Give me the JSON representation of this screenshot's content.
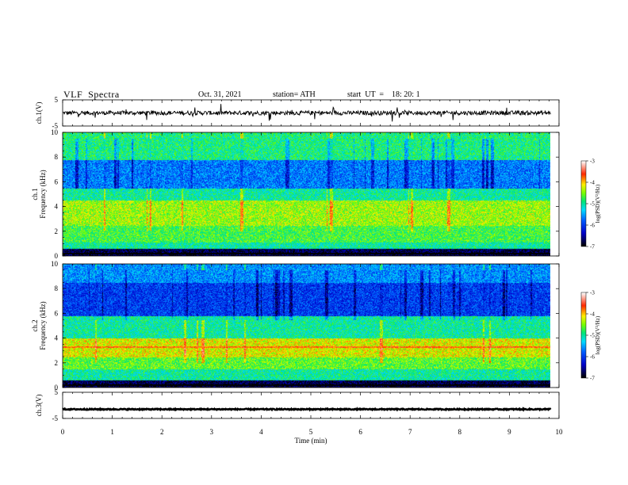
{
  "header": {
    "title": "VLF  Spectra",
    "date": "Oct. 31, 2021",
    "station": "station= ATH",
    "start": "start  UT  =    18: 20: 1"
  },
  "colors": {
    "trace": "#000000",
    "axis": "#000000",
    "spectrogram_scale": [
      "#000000",
      "#0000ff",
      "#00ffff",
      "#00ff00",
      "#ffff00",
      "#ff0000",
      "#ffffff"
    ]
  },
  "chart_data": [
    {
      "type": "line",
      "name": "ch1-voltage",
      "ylabel": "ch.1(V)",
      "ylim": [
        -5,
        5
      ],
      "yticks": [
        "5",
        "-5"
      ],
      "xlim": [
        0,
        10
      ],
      "mean_level": 0,
      "noise_amplitude": 0.8,
      "notes_visible": "trace around 0 V with spikes"
    },
    {
      "type": "heatmap",
      "name": "ch1-spectrogram",
      "ylabel": "ch.1\nFrequency  (kHz)",
      "ylim": [
        0,
        10
      ],
      "yticks": [
        "0",
        "2",
        "4",
        "6",
        "8",
        "10"
      ],
      "xlim": [
        0,
        9.83
      ],
      "value_range": [
        -7,
        -3
      ],
      "colorbar_label": "log(PSD)(V²/Hz)",
      "colorbar_ticks": [
        "-3",
        "-4",
        "-5",
        "-6",
        "-7"
      ],
      "bands_khz": [
        {
          "from": 0.0,
          "to": 0.6,
          "level": -6.8
        },
        {
          "from": 0.6,
          "to": 1.1,
          "level": -5.0
        },
        {
          "from": 1.1,
          "to": 2.5,
          "level": -4.7
        },
        {
          "from": 2.5,
          "to": 4.5,
          "level": -4.4
        },
        {
          "from": 4.5,
          "to": 5.5,
          "level": -5.0
        },
        {
          "from": 5.5,
          "to": 7.8,
          "level": -5.7
        },
        {
          "from": 7.8,
          "to": 10.0,
          "level": -4.9
        }
      ]
    },
    {
      "type": "heatmap",
      "name": "ch2-spectrogram",
      "ylabel": "ch.2\nFrequency  (kHz)",
      "ylim": [
        0,
        10
      ],
      "yticks": [
        "0",
        "2",
        "4",
        "6",
        "8",
        "10"
      ],
      "xlim": [
        0,
        9.83
      ],
      "value_range": [
        -7,
        -3
      ],
      "colorbar_label": "log(PSD)(V²/Hz)",
      "colorbar_ticks": [
        "-3",
        "-4",
        "-5",
        "-6",
        "-7"
      ],
      "bands_khz": [
        {
          "from": 0.0,
          "to": 0.6,
          "level": -6.8
        },
        {
          "from": 0.6,
          "to": 1.5,
          "level": -5.0
        },
        {
          "from": 1.5,
          "to": 2.5,
          "level": -4.6
        },
        {
          "from": 2.5,
          "to": 4.0,
          "level": -4.2
        },
        {
          "from": 4.0,
          "to": 5.8,
          "level": -5.0
        },
        {
          "from": 5.8,
          "to": 8.5,
          "level": -6.0
        },
        {
          "from": 8.5,
          "to": 10.0,
          "level": -5.6
        }
      ],
      "line_khz": 3.3
    },
    {
      "type": "line",
      "name": "ch3-voltage",
      "ylabel": "ch.3(V)",
      "ylim": [
        -5,
        5
      ],
      "yticks": [
        "5",
        "-5"
      ],
      "xlim": [
        0,
        10
      ],
      "mean_level": -1.5,
      "noise_amplitude": 0.2
    }
  ],
  "xaxis": {
    "label": "Time  (min)",
    "ticks": [
      "0",
      "1",
      "2",
      "3",
      "4",
      "5",
      "6",
      "7",
      "8",
      "9",
      "10"
    ],
    "xlim": [
      0,
      10
    ]
  }
}
